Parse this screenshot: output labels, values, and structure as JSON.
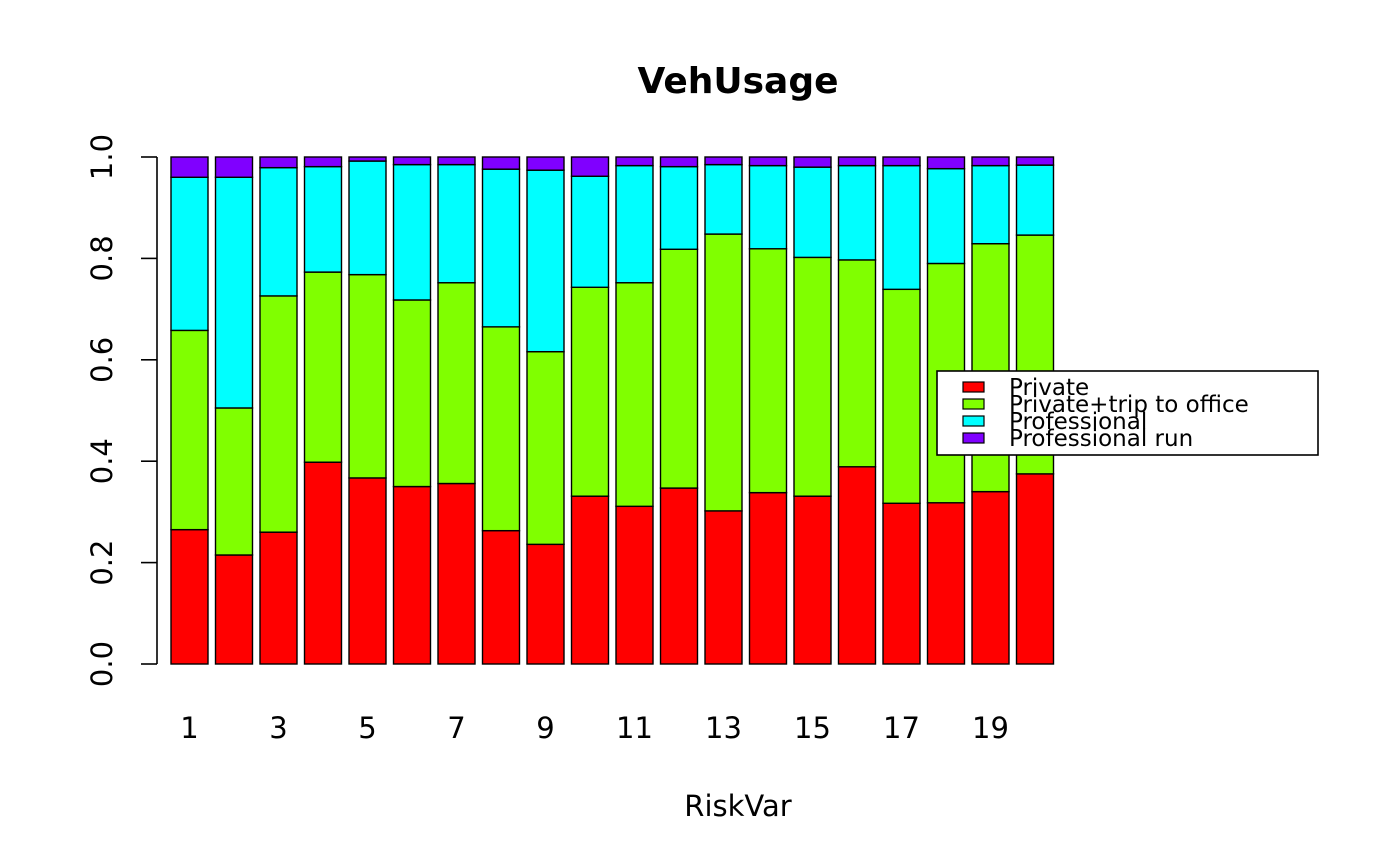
{
  "chart_data": {
    "type": "bar",
    "stacked": true,
    "title": "VehUsage",
    "xlabel": "RiskVar",
    "ylabel": "",
    "ylim": [
      0,
      1
    ],
    "yticks": [
      "0.0",
      "0.2",
      "0.4",
      "0.6",
      "0.8",
      "1.0"
    ],
    "categories": [
      "1",
      "2",
      "3",
      "4",
      "5",
      "6",
      "7",
      "8",
      "9",
      "10",
      "11",
      "12",
      "13",
      "14",
      "15",
      "16",
      "17",
      "18",
      "19",
      "20"
    ],
    "xtick_labels_shown": [
      "1",
      "3",
      "5",
      "7",
      "9",
      "11",
      "13",
      "15",
      "17",
      "19"
    ],
    "grid": false,
    "legend_position": "right",
    "colors": {
      "Private": "#FF0000",
      "Private+trip to office": "#80FF00",
      "Professional": "#00FFFF",
      "Professional run": "#8000FF"
    },
    "series": [
      {
        "name": "Private",
        "values": [
          0.265,
          0.215,
          0.26,
          0.398,
          0.367,
          0.35,
          0.356,
          0.263,
          0.236,
          0.331,
          0.311,
          0.347,
          0.302,
          0.338,
          0.331,
          0.389,
          0.317,
          0.318,
          0.34,
          0.375
        ]
      },
      {
        "name": "Private+trip to office",
        "values": [
          0.393,
          0.29,
          0.466,
          0.375,
          0.401,
          0.368,
          0.396,
          0.402,
          0.38,
          0.412,
          0.441,
          0.471,
          0.546,
          0.481,
          0.471,
          0.408,
          0.422,
          0.472,
          0.489,
          0.471
        ]
      },
      {
        "name": "Professional",
        "values": [
          0.302,
          0.455,
          0.253,
          0.208,
          0.224,
          0.267,
          0.233,
          0.311,
          0.358,
          0.219,
          0.231,
          0.163,
          0.137,
          0.164,
          0.178,
          0.186,
          0.244,
          0.187,
          0.154,
          0.138
        ]
      },
      {
        "name": "Professional run",
        "values": [
          0.04,
          0.04,
          0.021,
          0.019,
          0.008,
          0.015,
          0.015,
          0.024,
          0.026,
          0.038,
          0.017,
          0.019,
          0.015,
          0.017,
          0.02,
          0.017,
          0.017,
          0.023,
          0.017,
          0.016
        ]
      }
    ]
  }
}
